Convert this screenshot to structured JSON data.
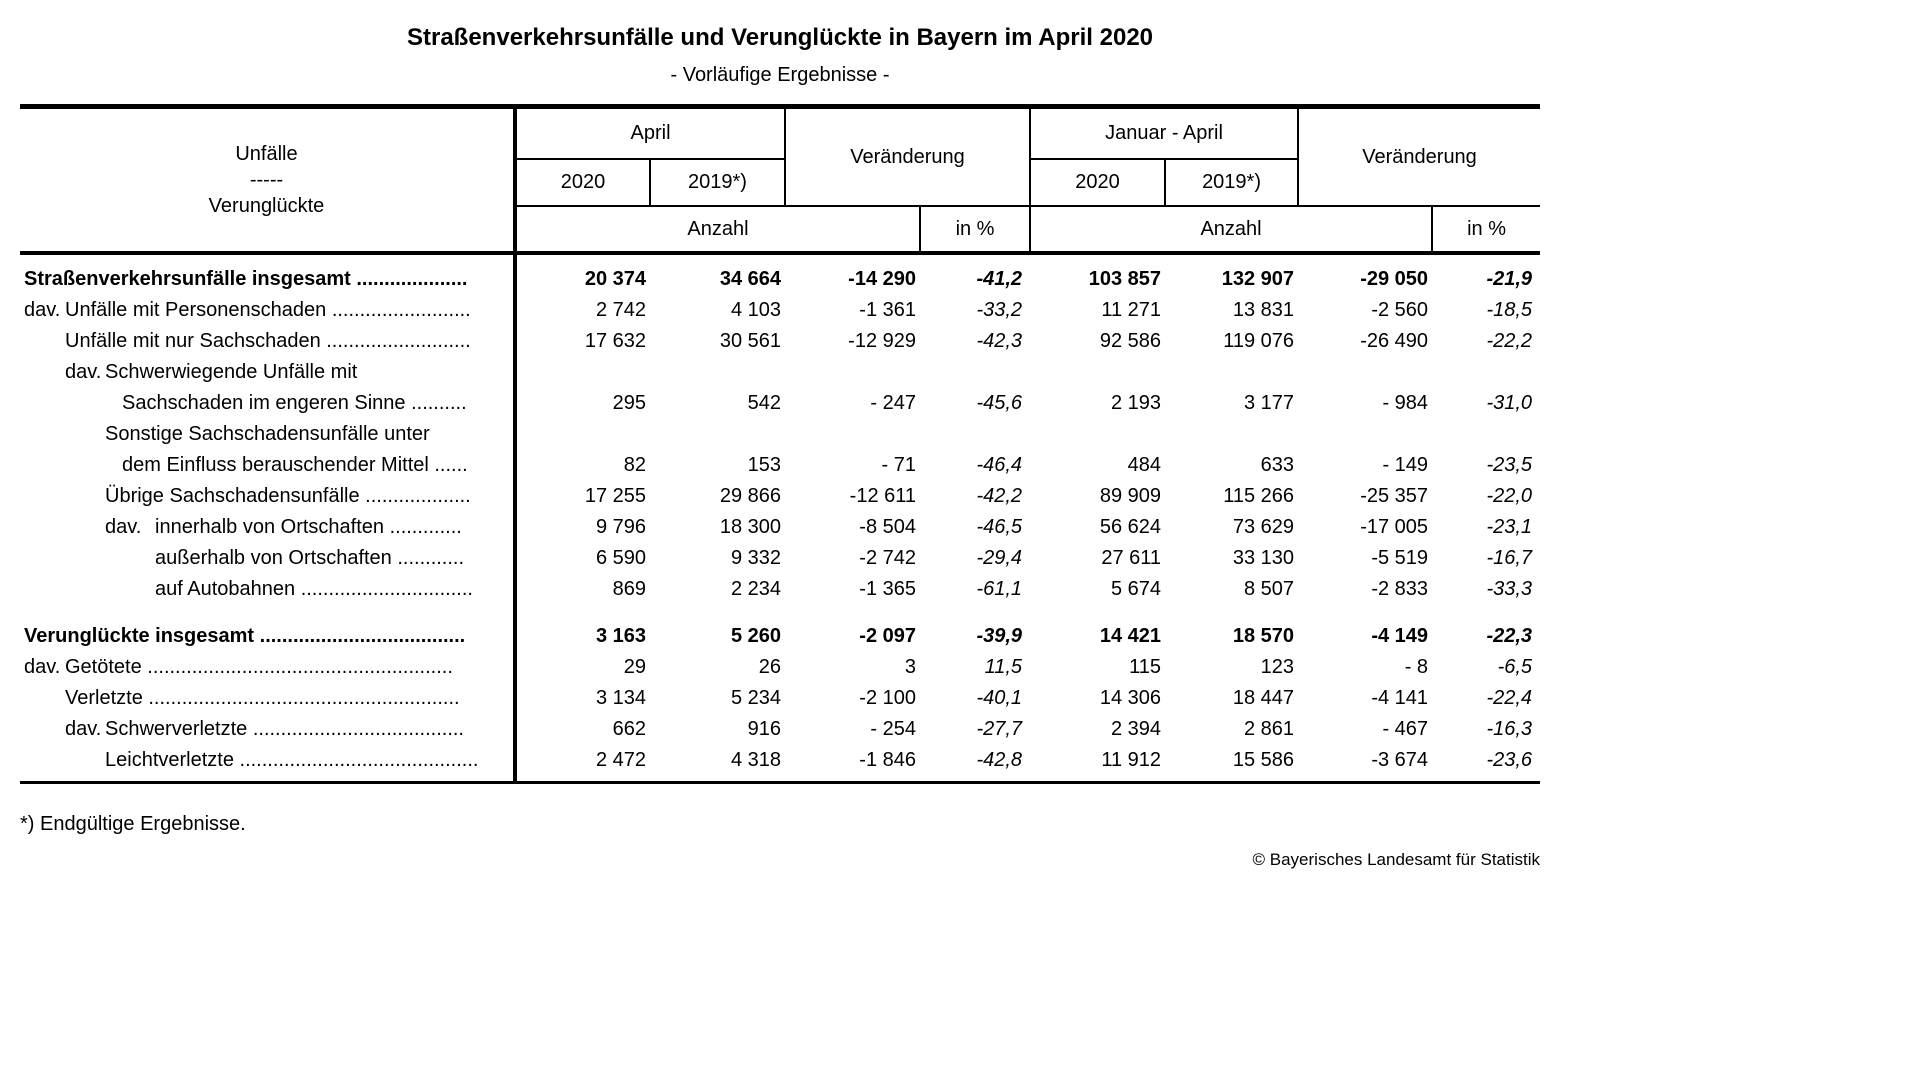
{
  "title": "Straßenverkehrsunfälle und Verunglückte in Bayern im April 2020",
  "subtitle": "- Vorläufige Ergebnisse -",
  "colors": {
    "text": "#000000",
    "background": "#ffffff"
  },
  "header": {
    "stub_top": "Unfälle",
    "stub_sep": "-----",
    "stub_bottom": "Verunglückte",
    "april": "April",
    "jan_april": "Januar - April",
    "veraenderung": "Veränderung",
    "y2020": "2020",
    "y2019": "2019*)",
    "anzahl": "Anzahl",
    "in_pct": "in %"
  },
  "rows": [
    {
      "bold": true,
      "lines": [
        {
          "i": 0,
          "t": "Straßenverkehrsunfälle insgesamt ...................."
        }
      ],
      "v": [
        "20 374",
        "34 664",
        "-14 290",
        "-41,2",
        "103 857",
        "132 907",
        "-29 050",
        "-21,9"
      ]
    },
    {
      "lines": [
        {
          "i": 0,
          "ti": 1,
          "p": "dav.",
          "t": "Unfälle mit Personenschaden ........................."
        }
      ],
      "v": [
        "2 742",
        "4 103",
        "-1 361",
        "-33,2",
        "11 271",
        "13 831",
        "-2 560",
        "-18,5"
      ]
    },
    {
      "lines": [
        {
          "i": 1,
          "t": "Unfälle mit nur Sachschaden .........................."
        }
      ],
      "v": [
        "17 632",
        "30 561",
        "-12 929",
        "-42,3",
        "92 586",
        "119 076",
        "-26 490",
        "-22,2"
      ]
    },
    {
      "lines": [
        {
          "i": 1,
          "ti": 2,
          "p": "dav.",
          "t": "Schwerwiegende Unfälle mit"
        },
        {
          "i": 3,
          "t": "Sachschaden im engeren Sinne .........."
        }
      ],
      "v": [
        "295",
        "542",
        "- 247",
        "-45,6",
        "2 193",
        "3 177",
        "- 984",
        "-31,0"
      ]
    },
    {
      "lines": [
        {
          "i": 2,
          "t": "Sonstige Sachschadensunfälle unter"
        },
        {
          "i": 3,
          "t": "dem Einfluss berauschender Mittel ......"
        }
      ],
      "v": [
        "82",
        "153",
        "- 71",
        "-46,4",
        "484",
        "633",
        "- 149",
        "-23,5"
      ]
    },
    {
      "lines": [
        {
          "i": 2,
          "t": "Übrige Sachschadensunfälle ..................."
        }
      ],
      "v": [
        "17 255",
        "29 866",
        "-12 611",
        "-42,2",
        "89 909",
        "115 266",
        "-25 357",
        "-22,0"
      ]
    },
    {
      "lines": [
        {
          "i": 2,
          "ti": 4,
          "p": "dav.",
          "t": "innerhalb von Ortschaften ............."
        }
      ],
      "v": [
        "9 796",
        "18 300",
        "-8 504",
        "-46,5",
        "56 624",
        "73 629",
        "-17 005",
        "-23,1"
      ]
    },
    {
      "lines": [
        {
          "i": 4,
          "t": "außerhalb von Ortschaften ............"
        }
      ],
      "v": [
        "6 590",
        "9 332",
        "-2 742",
        "-29,4",
        "27 611",
        "33 130",
        "-5 519",
        "-16,7"
      ]
    },
    {
      "lines": [
        {
          "i": 4,
          "t": "auf Autobahnen ..............................."
        }
      ],
      "v": [
        "869",
        "2 234",
        "-1 365",
        "-61,1",
        "5 674",
        "8 507",
        "-2 833",
        "-33,3"
      ]
    },
    {
      "spacer": true
    },
    {
      "bold": true,
      "lines": [
        {
          "i": 0,
          "t": "Verunglückte insgesamt ....................................."
        }
      ],
      "v": [
        "3 163",
        "5 260",
        "-2 097",
        "-39,9",
        "14 421",
        "18 570",
        "-4 149",
        "-22,3"
      ]
    },
    {
      "lines": [
        {
          "i": 0,
          "ti": 1,
          "p": "dav.",
          "t": "Getötete ......................................................."
        }
      ],
      "v": [
        "29",
        "26",
        "3",
        "11,5",
        "115",
        "123",
        "- 8",
        "-6,5"
      ]
    },
    {
      "lines": [
        {
          "i": 1,
          "t": "Verletzte ........................................................"
        }
      ],
      "v": [
        "3 134",
        "5 234",
        "-2 100",
        "-40,1",
        "14 306",
        "18 447",
        "-4 141",
        "-22,4"
      ]
    },
    {
      "lines": [
        {
          "i": 1,
          "ti": 2,
          "p": "dav.",
          "t": "Schwerverletzte ......................................"
        }
      ],
      "v": [
        "662",
        "916",
        "- 254",
        "-27,7",
        "2 394",
        "2 861",
        "- 467",
        "-16,3"
      ]
    },
    {
      "lines": [
        {
          "i": 2,
          "t": "Leichtverletzte ..........................................."
        }
      ],
      "v": [
        "2 472",
        "4 318",
        "-1 846",
        "-42,8",
        "11 912",
        "15 586",
        "-3 674",
        "-23,6"
      ]
    }
  ],
  "footnote": "*) Endgültige Ergebnisse.",
  "copyright": "© Bayerisches Landesamt für Statistik"
}
